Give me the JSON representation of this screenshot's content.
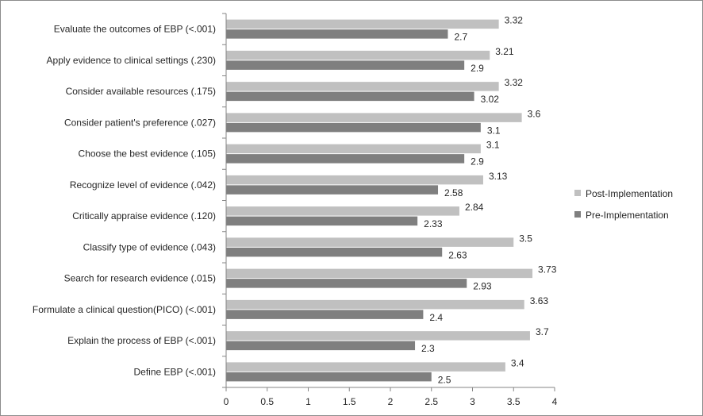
{
  "chart_data": {
    "type": "bar",
    "orientation": "horizontal",
    "title": "",
    "xlabel": "",
    "ylabel": "",
    "categories": [
      "Evaluate the outcomes of EBP (<.001)",
      "Apply evidence to clinical settings (.230)",
      "Consider available resources (.175)",
      "Consider patient's preference (.027)",
      "Choose the best evidence (.105)",
      "Recognize level of evidence (.042)",
      "Critically appraise evidence (.120)",
      "Classify type of evidence (.043)",
      "Search for research evidence (.015)",
      "Formulate a clinical question(PICO) (<.001)",
      "Explain the process of EBP (<.001)",
      "Define EBP (<.001)"
    ],
    "series": [
      {
        "name": "Post-Implementation",
        "color": "#c0c0c0",
        "values": [
          3.32,
          3.21,
          3.32,
          3.6,
          3.1,
          3.13,
          2.84,
          3.5,
          3.73,
          3.63,
          3.7,
          3.4
        ]
      },
      {
        "name": "Pre-Implementation",
        "color": "#7f7f7f",
        "values": [
          2.7,
          2.9,
          3.02,
          3.1,
          2.9,
          2.58,
          2.33,
          2.63,
          2.93,
          2.4,
          2.3,
          2.5
        ]
      }
    ],
    "xlim": [
      0,
      4
    ],
    "xticks": [
      "0",
      "0.5",
      "1",
      "1.5",
      "2",
      "2.5",
      "3",
      "3.5",
      "4"
    ],
    "grid": false,
    "legend_position": "right"
  }
}
